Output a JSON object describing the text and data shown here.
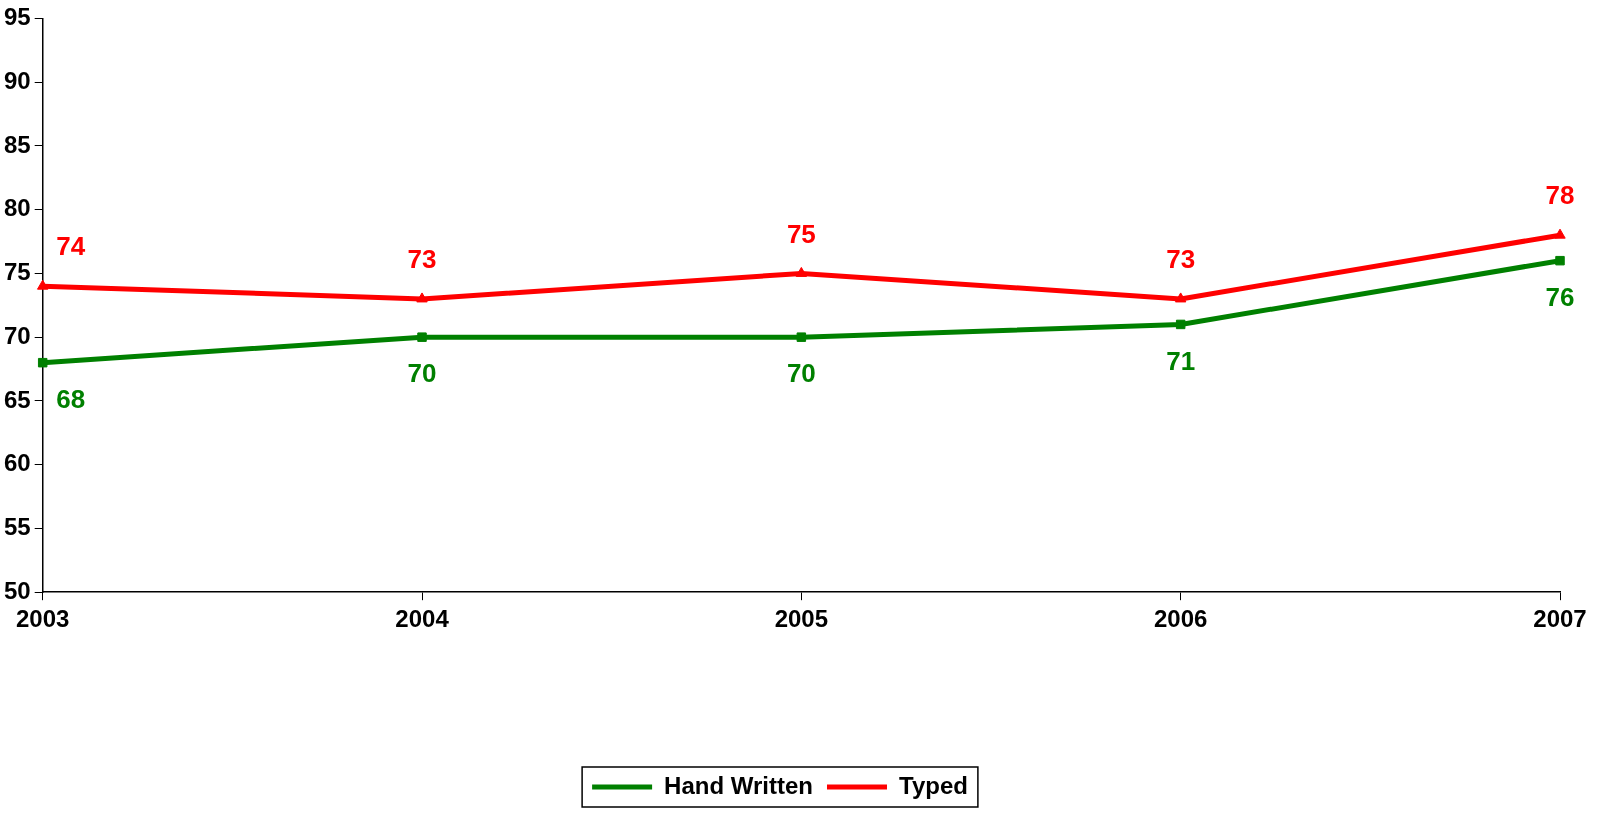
{
  "chart_data": {
    "type": "line",
    "categories": [
      "2003",
      "2004",
      "2005",
      "2006",
      "2007"
    ],
    "series": [
      {
        "name": "Hand Written",
        "color": "#008000",
        "marker": "square",
        "values": [
          68,
          70,
          70,
          71,
          76
        ]
      },
      {
        "name": "Typed",
        "color": "#ff0000",
        "marker": "triangle",
        "values": [
          74,
          73,
          75,
          73,
          78
        ]
      }
    ],
    "ylim": [
      50,
      95
    ],
    "yticks": [
      50,
      55,
      60,
      65,
      70,
      75,
      80,
      85,
      90,
      95
    ],
    "grid": false,
    "legend": "bottom",
    "data_labels": true,
    "line_style": "solid"
  }
}
